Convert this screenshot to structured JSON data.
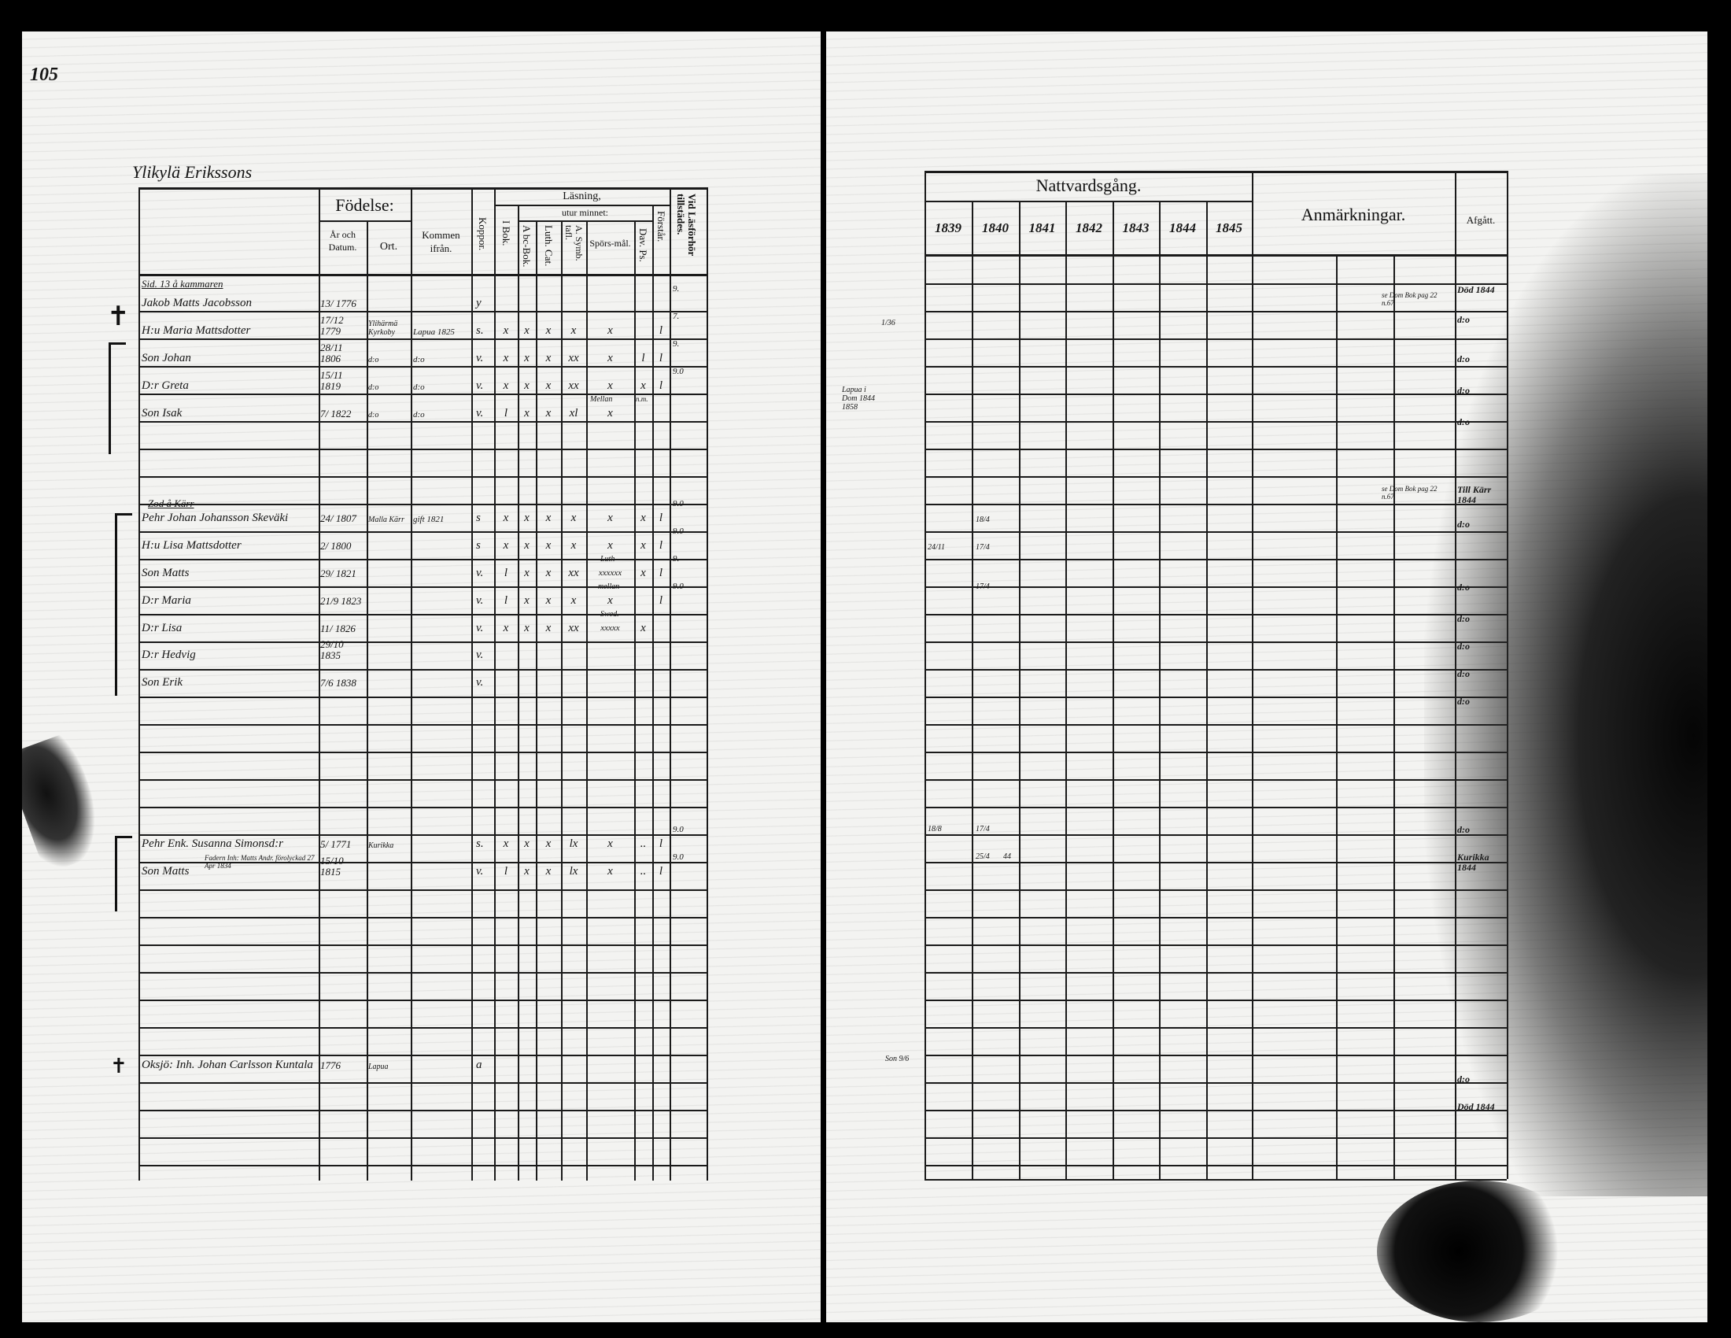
{
  "page_number": "105",
  "left_page": {
    "household_title": "Ylikylä Erikssons",
    "headers": {
      "fodelse": "Födelse:",
      "ar_och_datum": "År och Datum.",
      "ort": "Ort.",
      "kommen_ifran": "Kommen ifrån.",
      "koppor": "Koppor.",
      "lasning": "Läsning,",
      "utur_minnet": "utur minnet:",
      "i_bok": "I Bok.",
      "abc_bok": "A bc-Bok.",
      "luth_cat": "Luth. Cat.",
      "symb_taflan": "A. Symb. tafl.",
      "sporsmal": "Spörs-mål.",
      "dav_ps": "Dav. Ps.",
      "forstar": "Förstår.",
      "vid_lasforhor": "Vid Läsförhör tillstädes."
    },
    "groups": [
      {
        "heading": "Sid. 13 å kammaren"
      },
      {
        "heading": "Zod å Kärr"
      }
    ],
    "entries": [
      {
        "name": "Jakob Matts Jacobsson",
        "date": "13/ 1776",
        "ort": "",
        "kommen": "",
        "koppor": "y",
        "marks": [
          "",
          "",
          "",
          "",
          "",
          "",
          ""
        ],
        "vid": "9."
      },
      {
        "name": "H:u Maria Mattsdotter",
        "date": "17/12 1779",
        "ort": "Ylihärmä Kyrkoby",
        "kommen": "Lapua 1825",
        "koppor": "s.",
        "marks": [
          "x",
          "x",
          "x",
          "x",
          "x",
          "",
          "l"
        ],
        "vid": "7."
      },
      {
        "name": "Son Johan",
        "date": "28/11 1806",
        "ort": "d:o",
        "kommen": "d:o",
        "koppor": "v.",
        "marks": [
          "x",
          "x",
          "x",
          "xx",
          "x",
          "l",
          "l"
        ],
        "vid": "9."
      },
      {
        "name": "D:r Greta",
        "date": "15/11 1819",
        "ort": "d:o",
        "kommen": "d:o",
        "koppor": "v.",
        "marks": [
          "x",
          "x",
          "x",
          "xx",
          "x",
          "x",
          "l"
        ],
        "vid": "9.0"
      },
      {
        "name": "Son Isak",
        "date": "7/ 1822",
        "ort": "d:o",
        "kommen": "d:o",
        "koppor": "v.",
        "marks": [
          "l",
          "x",
          "x",
          "xl",
          "x",
          "",
          ""
        ],
        "vid": ""
      },
      {
        "name": "Pehr Johan Johansson Skeväki",
        "date": "24/ 1807",
        "ort": "Malla Kärr",
        "kommen": "gift 1821",
        "koppor": "s",
        "marks": [
          "x",
          "x",
          "x",
          "x",
          "x",
          "x",
          "l"
        ],
        "vid": "9.0"
      },
      {
        "name": "H:u Lisa Mattsdotter",
        "date": "2/ 1800",
        "ort": "",
        "kommen": "",
        "koppor": "s",
        "marks": [
          "x",
          "x",
          "x",
          "x",
          "x",
          "x",
          "l"
        ],
        "vid": "9.0"
      },
      {
        "name": "Son Matts",
        "date": "29/ 1821",
        "ort": "",
        "kommen": "",
        "koppor": "v.",
        "marks": [
          "l",
          "x",
          "x",
          "xx",
          "xxxxxx",
          "x",
          "l"
        ],
        "vid": "9."
      },
      {
        "name": "D:r Maria",
        "date": "21/9 1823",
        "ort": "",
        "kommen": "",
        "koppor": "v.",
        "marks": [
          "l",
          "x",
          "x",
          "x",
          "x",
          "",
          "l"
        ],
        "vid": "9.0"
      },
      {
        "name": "D:r Lisa",
        "date": "11/ 1826",
        "ort": "",
        "kommen": "",
        "koppor": "v.",
        "marks": [
          "x",
          "x",
          "x",
          "xx",
          "xxxxx",
          "x",
          ""
        ],
        "vid": ""
      },
      {
        "name": "D:r Hedvig",
        "date": "29/10 1835",
        "ort": "",
        "kommen": "",
        "koppor": "v.",
        "marks": [
          "",
          "",
          "",
          "",
          "",
          "",
          ""
        ],
        "vid": ""
      },
      {
        "name": "Son Erik",
        "date": "7/6 1838",
        "ort": "",
        "kommen": "",
        "koppor": "v.",
        "marks": [
          "",
          "",
          "",
          "",
          "",
          "",
          ""
        ],
        "vid": ""
      },
      {
        "name": "Pehr Enk. Susanna Simonsd:r",
        "date": "5/ 1771",
        "ort": "Kurikka",
        "kommen": "",
        "koppor": "s.",
        "marks": [
          "x",
          "x",
          "x",
          "lx",
          "x",
          "..",
          "l"
        ],
        "vid": "9.0"
      },
      {
        "name": "Son Matts",
        "date": "15/10 1815",
        "ort": "",
        "kommen": "",
        "koppor": "v.",
        "marks": [
          "l",
          "x",
          "x",
          "lx",
          "x",
          "..",
          "l"
        ],
        "vid": "9.0"
      },
      {
        "name": "Oksjö: Inh. Johan Carlsson Kuntala",
        "date": "1776",
        "ort": "Lapua",
        "kommen": "",
        "koppor": "a",
        "marks": [
          "",
          "",
          "",
          "",
          "",
          "",
          ""
        ],
        "vid": ""
      }
    ],
    "notes": {
      "greta_sporsmal": "Mellan",
      "greta_dav": "n.m.",
      "matts_sporsmal": "Luth",
      "maria_sporsmal": "mellan",
      "lisa_sporsmal": "Swed.",
      "son_matts_note": "Fadern Inh: Matts Andr. förolyckad 27 Apr 1834"
    }
  },
  "right_page": {
    "headers": {
      "nattvardsgang": "Nattvardsgång.",
      "years": [
        "1839",
        "1840",
        "1841",
        "1842",
        "1843",
        "1844",
        "1845"
      ],
      "anmarkningar": "Anmärkningar.",
      "afgatt": "Afgått."
    },
    "margin_notes": [
      "1/36",
      "Lapua i Dom 1844 1858",
      "Son 9/6"
    ],
    "communion_marks": [
      "18/4",
      "17/4",
      "24/11",
      "17/4",
      "18/8",
      "17/4",
      "25/4",
      "44"
    ],
    "remarks": [
      "se Dom Bok pag 22 n.67",
      "se Dom Bok pag 22 n.67"
    ],
    "afgatt": [
      "Död 1844",
      "d:o",
      "d:o",
      "d:o",
      "d:o",
      "Till Kärr 1844",
      "d:o",
      "d:o",
      "d:o",
      "d:o",
      "d:o",
      "d:o",
      "d:o",
      "Kurikka 1844",
      "d:o",
      "Död 1844"
    ]
  }
}
